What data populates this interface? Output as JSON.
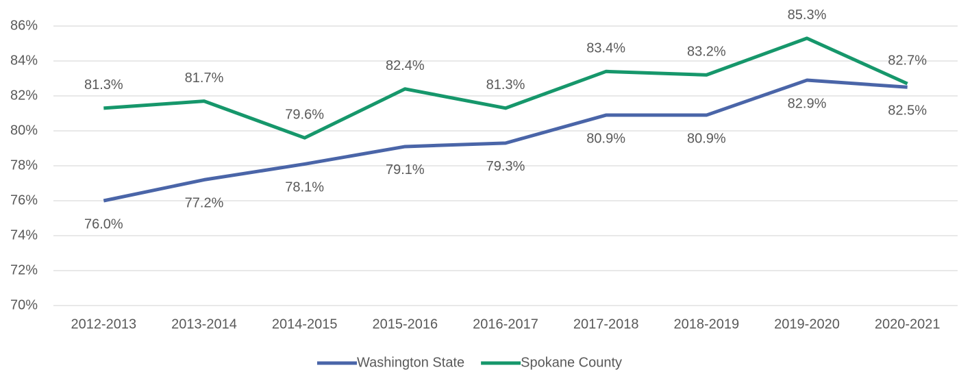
{
  "chart_data": {
    "type": "line",
    "categories": [
      "2012-2013",
      "2013-2014",
      "2014-2015",
      "2015-2016",
      "2016-2017",
      "2017-2018",
      "2018-2019",
      "2019-2020",
      "2020-2021"
    ],
    "series": [
      {
        "name": "Washington State",
        "color": "#4a65a8",
        "values": [
          76.0,
          77.2,
          78.1,
          79.1,
          79.3,
          80.9,
          80.9,
          82.9,
          82.5
        ],
        "value_labels": [
          "76.0%",
          "77.2%",
          "78.1%",
          "79.1%",
          "79.3%",
          "80.9%",
          "80.9%",
          "82.9%",
          "82.5%"
        ]
      },
      {
        "name": "Spokane County",
        "color": "#16976b",
        "values": [
          81.3,
          81.7,
          79.6,
          82.4,
          81.3,
          83.4,
          83.2,
          85.3,
          82.7
        ],
        "value_labels": [
          "81.3%",
          "81.7%",
          "79.6%",
          "82.4%",
          "81.3%",
          "83.4%",
          "83.2%",
          "85.3%",
          "82.7%"
        ]
      }
    ],
    "ylim": [
      70,
      86
    ],
    "yticks": [
      {
        "value": 70,
        "label": "70%"
      },
      {
        "value": 72,
        "label": "72%"
      },
      {
        "value": 74,
        "label": "74%"
      },
      {
        "value": 76,
        "label": "76%"
      },
      {
        "value": 78,
        "label": "78%"
      },
      {
        "value": 80,
        "label": "80%"
      },
      {
        "value": 82,
        "label": "82%"
      },
      {
        "value": 84,
        "label": "84%"
      },
      {
        "value": 86,
        "label": "86%"
      }
    ],
    "grid": true,
    "legend": "bottom"
  }
}
